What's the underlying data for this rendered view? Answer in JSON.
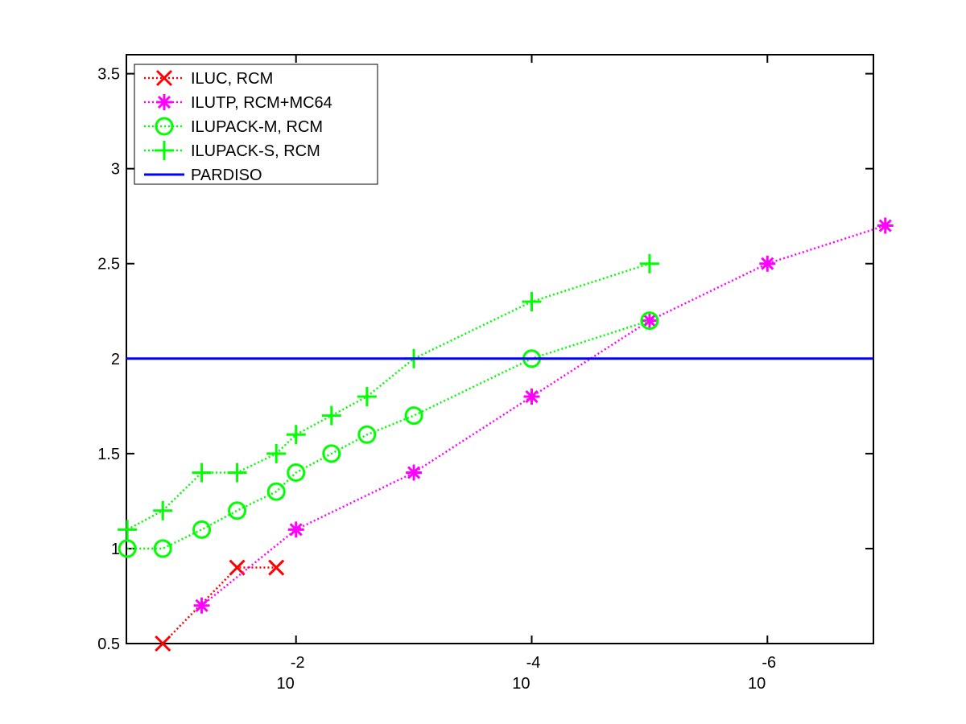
{
  "chart_data": {
    "type": "line",
    "title": "",
    "xlabel": "",
    "ylabel": "",
    "x_scale": "log10-reversed",
    "xlim": [
      0.275,
      1.26e-07
    ],
    "ylim": [
      0.5,
      3.6
    ],
    "grid": false,
    "legend_position": "top-left",
    "yticks": [
      0.5,
      1,
      1.5,
      2,
      2.5,
      3,
      3.5
    ],
    "ytick_labels": [
      "0.5",
      "1",
      "1.5",
      "2",
      "2.5",
      "3",
      "3.5"
    ],
    "xticks": [
      0.01,
      0.0001,
      1e-06
    ],
    "xtick_labels": [
      {
        "base": "10",
        "exp": "-2"
      },
      {
        "base": "10",
        "exp": "-4"
      },
      {
        "base": "10",
        "exp": "-6"
      }
    ],
    "series": [
      {
        "name": "ILUC, RCM",
        "color": "#ff0000",
        "marker": "x",
        "line": "dotted",
        "x": [
          0.135,
          0.0316,
          0.0147
        ],
        "y": [
          0.5,
          0.9,
          0.9
        ]
      },
      {
        "name": "ILUTP, RCM+MC64",
        "color": "#ff00ff",
        "marker": "asterisk",
        "line": "dotted",
        "x": [
          0.0631,
          0.01,
          0.001,
          0.0001,
          1e-05,
          1e-06,
          1e-07
        ],
        "y": [
          0.7,
          1.1,
          1.4,
          1.8,
          2.2,
          2.5,
          2.7
        ]
      },
      {
        "name": "ILUPACK-M, RCM",
        "color": "#00ff00",
        "marker": "circle",
        "line": "dotted",
        "x": [
          0.27,
          0.135,
          0.0631,
          0.0316,
          0.0147,
          0.01,
          0.005,
          0.0025,
          0.001,
          0.0001,
          1e-05
        ],
        "y": [
          1.0,
          1.0,
          1.1,
          1.2,
          1.3,
          1.4,
          1.5,
          1.6,
          1.7,
          2.0,
          2.2
        ]
      },
      {
        "name": "ILUPACK-S, RCM",
        "color": "#00ff00",
        "marker": "plus",
        "line": "dotted",
        "x": [
          0.27,
          0.135,
          0.0631,
          0.0316,
          0.0147,
          0.01,
          0.005,
          0.0025,
          0.001,
          0.0001,
          1e-05
        ],
        "y": [
          1.1,
          1.2,
          1.4,
          1.4,
          1.5,
          1.6,
          1.7,
          1.8,
          2.0,
          2.3,
          2.5
        ]
      },
      {
        "name": "PARDISO",
        "color": "#0000ff",
        "marker": "none",
        "line": "solid",
        "x": [
          0.275,
          1.26e-07
        ],
        "y": [
          2.0,
          2.0
        ]
      }
    ]
  }
}
